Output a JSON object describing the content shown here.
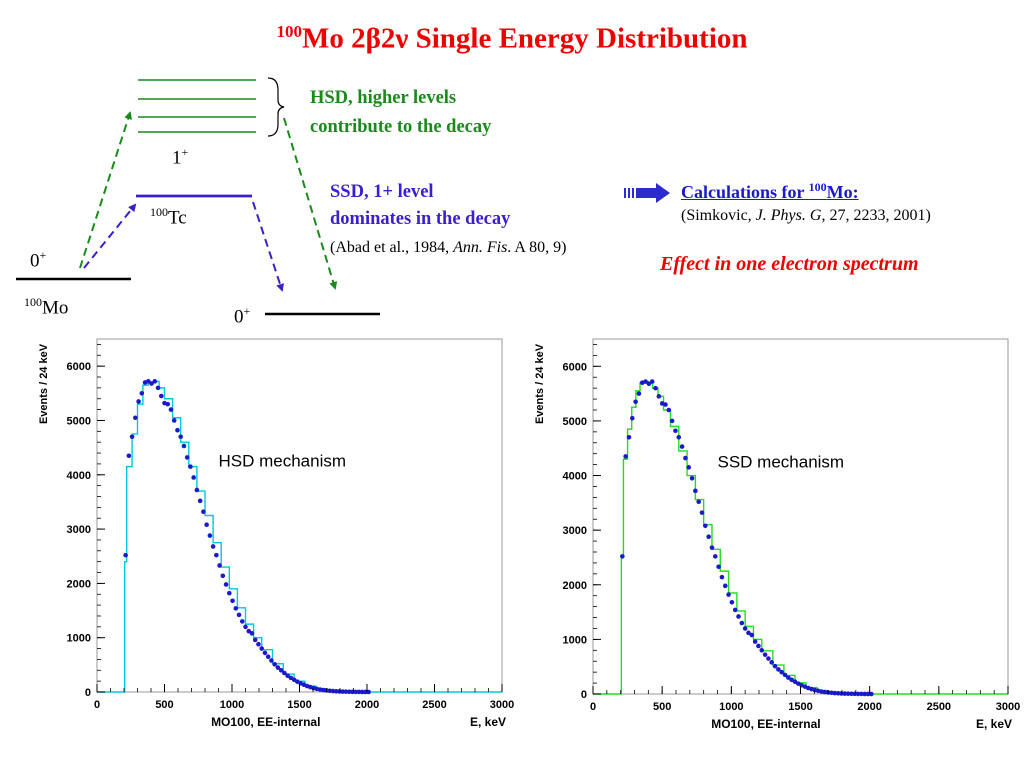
{
  "title": {
    "sup": "100",
    "main": "Mo 2β2ν   Single Energy Distribution"
  },
  "diagram": {
    "hsd_line1": "HSD, higher levels",
    "hsd_line2": "contribute to the decay",
    "ssd_line1": "SSD, 1+ level",
    "ssd_line2": "dominates in the decay",
    "ssd_ref_pre": "(Abad et al., 1984, ",
    "ssd_ref_journal": "Ann. Fis",
    "ssd_ref_post": ". A 80, 9)",
    "level_1plus": "1",
    "level_1plus_sup": "+",
    "tc_sup": "100",
    "tc": "Tc",
    "mo_0plus": "0",
    "mo_0plus_sup": "+",
    "mo_sup": "100",
    "mo": "Mo",
    "ru_0plus": "0",
    "ru_0plus_sup": "+"
  },
  "calc": {
    "head_pre": "Calculations for ",
    "head_sup": "100",
    "head_post": "Mo:",
    "ref_pre": "(Simkovic, ",
    "ref_journal": "J. Phys. G",
    "ref_post": ", 27, 2233, 2001)",
    "effect": "Effect in one electron spectrum"
  },
  "colors": {
    "title": "#ee0000",
    "hsd": "#1a8a1a",
    "ssd": "#3a1fd0",
    "arrow": "#2b2bd0",
    "hsd_hist": "#00c8d8",
    "ssd_hist": "#22dd22",
    "points": "#1a1acc"
  },
  "chart_data": [
    {
      "type": "line",
      "annotation": "HSD mechanism",
      "xlabel_left": "MO100, EE-internal",
      "xlabel_right": "E, keV",
      "ylabel": "Events / 24 keV",
      "xlim": [
        0,
        3000
      ],
      "ylim": [
        0,
        6500
      ],
      "x_ticks": [
        0,
        500,
        1000,
        1500,
        2000,
        2500,
        3000
      ],
      "y_ticks": [
        0,
        1000,
        2000,
        3000,
        4000,
        5000,
        6000
      ],
      "series": [
        {
          "kind": "histogram",
          "color": "#00c8d8",
          "x": [
            0,
            200,
            205,
            220,
            260,
            300,
            340,
            380,
            420,
            460,
            500,
            560,
            620,
            680,
            740,
            800,
            860,
            920,
            980,
            1040,
            1100,
            1160,
            1220,
            1300,
            1380,
            1460,
            1540,
            1620,
            1700,
            1780,
            1860,
            1940,
            2000,
            2100,
            3000
          ],
          "y": [
            0,
            0,
            2400,
            4150,
            4750,
            5300,
            5650,
            5700,
            5720,
            5600,
            5400,
            5050,
            4600,
            4150,
            3700,
            3250,
            2750,
            2300,
            1900,
            1550,
            1250,
            1000,
            780,
            520,
            330,
            200,
            110,
            60,
            30,
            15,
            8,
            3,
            0,
            0,
            0
          ]
        },
        {
          "kind": "points",
          "color": "#1a1acc",
          "x": [
            212,
            236,
            260,
            284,
            308,
            332,
            356,
            380,
            404,
            428,
            452,
            476,
            500,
            524,
            548,
            572,
            596,
            620,
            644,
            668,
            692,
            716,
            740,
            764,
            788,
            812,
            836,
            860,
            884,
            908,
            932,
            956,
            980,
            1004,
            1028,
            1052,
            1076,
            1100,
            1124,
            1148,
            1172,
            1196,
            1220,
            1244,
            1268,
            1292,
            1316,
            1340,
            1364,
            1388,
            1412,
            1436,
            1460,
            1484,
            1508,
            1532,
            1556,
            1580,
            1604,
            1628,
            1652,
            1676,
            1700,
            1724,
            1748,
            1772,
            1796,
            1820,
            1844,
            1868,
            1892,
            1916,
            1940,
            1964,
            1988,
            2012
          ],
          "y": [
            2520,
            4350,
            4700,
            5050,
            5350,
            5500,
            5700,
            5720,
            5680,
            5720,
            5600,
            5450,
            5320,
            5300,
            5200,
            5000,
            4820,
            4700,
            4530,
            4320,
            4150,
            3950,
            3720,
            3520,
            3320,
            3080,
            2880,
            2680,
            2520,
            2330,
            2140,
            1980,
            1820,
            1680,
            1540,
            1420,
            1300,
            1200,
            1120,
            1080,
            960,
            880,
            800,
            720,
            650,
            580,
            510,
            450,
            400,
            350,
            300,
            260,
            225,
            190,
            160,
            135,
            110,
            90,
            72,
            58,
            46,
            36,
            28,
            22,
            17,
            13,
            10,
            8,
            6,
            4,
            3,
            2,
            2,
            1,
            1,
            0
          ]
        }
      ]
    },
    {
      "type": "line",
      "annotation": "SSD mechanism",
      "xlabel_left": "MO100, EE-internal",
      "xlabel_right": "E, keV",
      "ylabel": "Events / 24 keV",
      "xlim": [
        0,
        3000
      ],
      "ylim": [
        0,
        6500
      ],
      "x_ticks": [
        0,
        500,
        1000,
        1500,
        2000,
        2500,
        3000
      ],
      "y_ticks": [
        0,
        1000,
        2000,
        3000,
        4000,
        5000,
        6000
      ],
      "series": [
        {
          "kind": "histogram",
          "color": "#22dd22",
          "x": [
            0,
            200,
            205,
            220,
            250,
            280,
            310,
            340,
            370,
            400,
            430,
            470,
            510,
            560,
            620,
            680,
            740,
            800,
            860,
            920,
            980,
            1040,
            1100,
            1160,
            1220,
            1300,
            1380,
            1460,
            1540,
            1620,
            1700,
            1780,
            1860,
            1940,
            2000,
            2100,
            3000
          ],
          "y": [
            0,
            0,
            2500,
            4300,
            4850,
            5250,
            5550,
            5700,
            5720,
            5700,
            5600,
            5450,
            5200,
            4900,
            4450,
            4000,
            3560,
            3100,
            2650,
            2250,
            1850,
            1520,
            1240,
            1000,
            790,
            530,
            340,
            205,
            115,
            62,
            32,
            16,
            8,
            3,
            0,
            0,
            0
          ]
        },
        {
          "kind": "points",
          "color": "#1a1acc",
          "x": [
            212,
            236,
            260,
            284,
            308,
            332,
            356,
            380,
            404,
            428,
            452,
            476,
            500,
            524,
            548,
            572,
            596,
            620,
            644,
            668,
            692,
            716,
            740,
            764,
            788,
            812,
            836,
            860,
            884,
            908,
            932,
            956,
            980,
            1004,
            1028,
            1052,
            1076,
            1100,
            1124,
            1148,
            1172,
            1196,
            1220,
            1244,
            1268,
            1292,
            1316,
            1340,
            1364,
            1388,
            1412,
            1436,
            1460,
            1484,
            1508,
            1532,
            1556,
            1580,
            1604,
            1628,
            1652,
            1676,
            1700,
            1724,
            1748,
            1772,
            1796,
            1820,
            1844,
            1868,
            1892,
            1916,
            1940,
            1964,
            1988,
            2012
          ],
          "y": [
            2520,
            4350,
            4700,
            5050,
            5350,
            5500,
            5700,
            5720,
            5680,
            5720,
            5600,
            5450,
            5320,
            5300,
            5200,
            5000,
            4820,
            4700,
            4530,
            4320,
            4150,
            3950,
            3720,
            3520,
            3320,
            3080,
            2880,
            2680,
            2520,
            2330,
            2140,
            1980,
            1820,
            1680,
            1540,
            1420,
            1300,
            1200,
            1120,
            1080,
            960,
            880,
            800,
            720,
            650,
            580,
            510,
            450,
            400,
            350,
            300,
            260,
            225,
            190,
            160,
            135,
            110,
            90,
            72,
            58,
            46,
            36,
            28,
            22,
            17,
            13,
            10,
            8,
            6,
            4,
            3,
            2,
            2,
            1,
            1,
            0
          ]
        }
      ]
    }
  ]
}
